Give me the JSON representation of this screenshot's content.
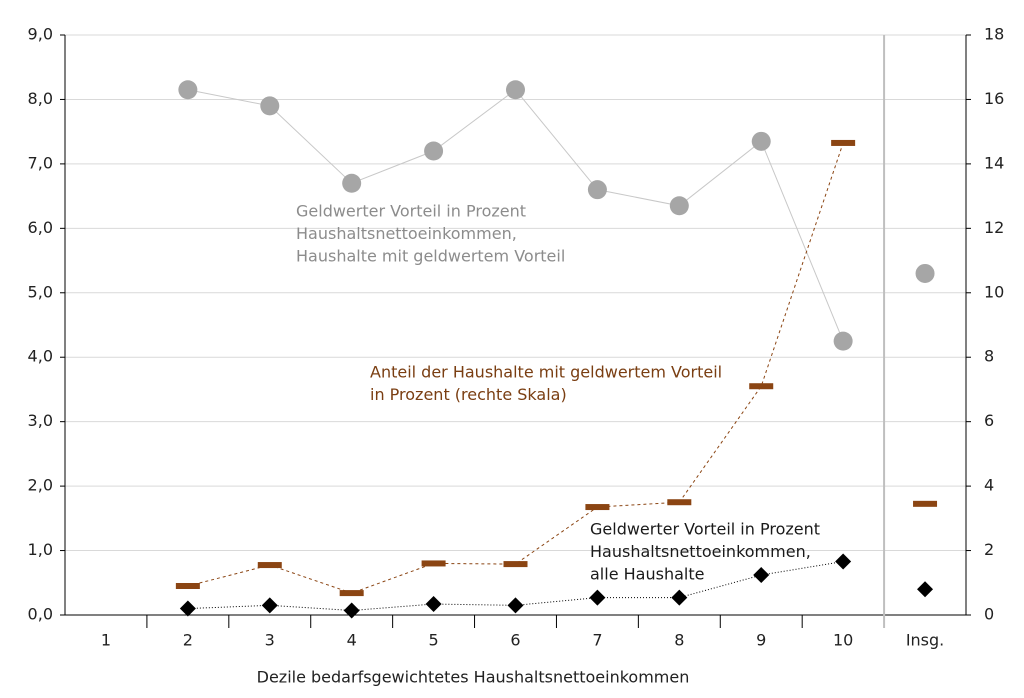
{
  "chart_data": {
    "type": "dot",
    "x_label": "Dezile bedarfsgewichtetes Haushaltsnettoeinkommen",
    "categories": [
      "1",
      "2",
      "3",
      "4",
      "5",
      "6",
      "7",
      "8",
      "9",
      "10",
      "Insg."
    ],
    "separator_before": 10,
    "ylim": [
      0,
      9
    ],
    "yticks": [
      {
        "value": 0,
        "label": "0,0"
      },
      {
        "value": 1,
        "label": "1,0"
      },
      {
        "value": 2,
        "label": "2,0"
      },
      {
        "value": 3,
        "label": "3,0"
      },
      {
        "value": 4,
        "label": "4,0"
      },
      {
        "value": 5,
        "label": "5,0"
      },
      {
        "value": 6,
        "label": "6,0"
      },
      {
        "value": 7,
        "label": "7,0"
      },
      {
        "value": 8,
        "label": "8,0"
      },
      {
        "value": 9,
        "label": "9,0"
      }
    ],
    "y2lim": [
      0,
      18
    ],
    "y2ticks": [
      0,
      2,
      4,
      6,
      8,
      10,
      12,
      14,
      16,
      18
    ],
    "grid": true,
    "series": [
      {
        "color": "#a6a6a6",
        "marker": "circle",
        "line": "solid",
        "values": [
          null,
          8.15,
          7.9,
          6.7,
          7.2,
          8.15,
          6.6,
          6.35,
          7.35,
          4.25,
          5.3
        ]
      },
      {
        "color": "#8b4513",
        "marker": "dash",
        "line": "dashed",
        "axis": "y2",
        "values": [
          null,
          0.9,
          1.55,
          0.68,
          1.6,
          1.58,
          3.35,
          3.5,
          7.1,
          14.65,
          3.45
        ]
      },
      {
        "color": "#000000",
        "marker": "diamond",
        "line": "dotted",
        "values": [
          null,
          0.1,
          0.15,
          0.07,
          0.17,
          0.15,
          0.27,
          0.27,
          0.62,
          0.83,
          0.4
        ]
      }
    ],
    "annotations": [
      {
        "color": "#8c8c8c",
        "lines": [
          "Geldwerter Vorteil in Prozent",
          "Haushaltsnettoeinkommen,",
          "Haushalte mit geldwertem Vorteil"
        ]
      },
      {
        "color": "#7a3e12",
        "lines": [
          "Anteil der Haushalte mit geldwertem Vorteil",
          "in Prozent (rechte Skala)"
        ]
      },
      {
        "color": "#1a1a1a",
        "lines": [
          "Geldwerter Vorteil in Prozent",
          "Haushaltsnettoeinkommen,",
          "alle Haushalte"
        ]
      }
    ]
  }
}
